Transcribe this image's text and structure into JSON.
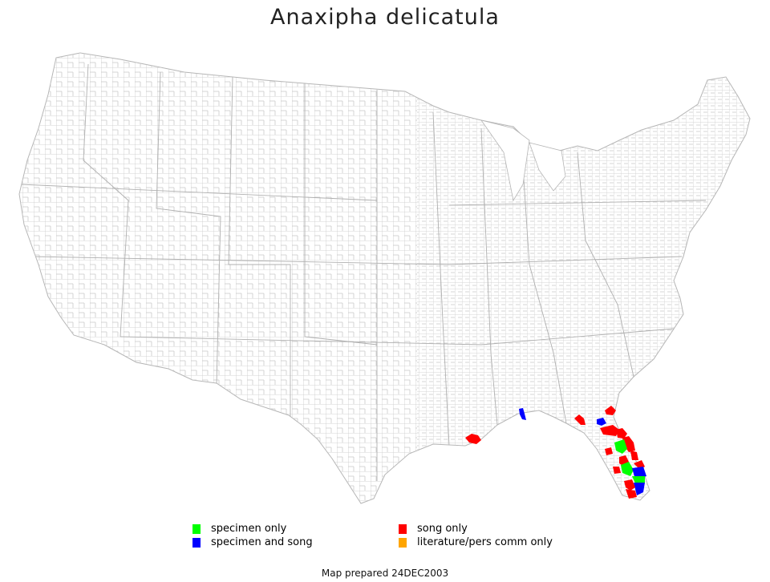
{
  "title": "Anaxipha delicatula",
  "map": {
    "region": "contiguous United States by county",
    "county_line_color": "#bdbdbd",
    "background_color": "#ffffff"
  },
  "legend": {
    "items": [
      {
        "label": "specimen only",
        "color": "#00ff00"
      },
      {
        "label": "specimen and song",
        "color": "#0000ff"
      },
      {
        "label": "song only",
        "color": "#ff0000"
      },
      {
        "label": "literature/pers comm only",
        "color": "#ffa500"
      }
    ]
  },
  "records": [
    {
      "area": "Louisiana coast",
      "status": "song only"
    },
    {
      "area": "Mississippi/Alabama",
      "status": "specimen and song"
    },
    {
      "area": "Florida panhandle",
      "status": "song only"
    },
    {
      "area": "NE Florida",
      "status": "song only"
    },
    {
      "area": "Central Florida",
      "status": "song only"
    },
    {
      "area": "Central Florida",
      "status": "specimen and song"
    },
    {
      "area": "Central Florida",
      "status": "specimen only"
    },
    {
      "area": "South Florida",
      "status": "specimen only"
    },
    {
      "area": "South Florida",
      "status": "specimen and song"
    },
    {
      "area": "South Florida",
      "status": "song only"
    }
  ],
  "footer": "Map prepared 24DEC2003"
}
